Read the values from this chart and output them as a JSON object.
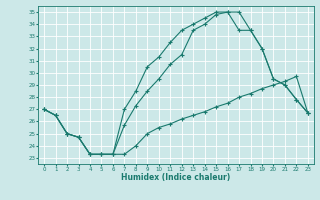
{
  "xlabel": "Humidex (Indice chaleur)",
  "bg_color": "#cce8e8",
  "grid_color": "#ffffff",
  "line_color": "#1a7a6e",
  "xlim": [
    -0.5,
    23.5
  ],
  "ylim": [
    22.5,
    35.5
  ],
  "xticks": [
    0,
    1,
    2,
    3,
    4,
    5,
    6,
    7,
    8,
    9,
    10,
    11,
    12,
    13,
    14,
    15,
    16,
    17,
    18,
    19,
    20,
    21,
    22,
    23
  ],
  "yticks": [
    23,
    24,
    25,
    26,
    27,
    28,
    29,
    30,
    31,
    32,
    33,
    34,
    35
  ],
  "line1_x": [
    0,
    1,
    2,
    3,
    4,
    5,
    6,
    7,
    8,
    9,
    10,
    11,
    12,
    13,
    14,
    15,
    16,
    17,
    18,
    19,
    20,
    21,
    22,
    23
  ],
  "line1_y": [
    27.0,
    26.5,
    25.0,
    24.7,
    23.3,
    23.3,
    23.3,
    23.3,
    24.0,
    25.0,
    25.5,
    25.8,
    26.2,
    26.5,
    26.8,
    27.2,
    27.5,
    28.0,
    28.3,
    28.7,
    29.0,
    29.3,
    29.7,
    26.7
  ],
  "line2_x": [
    0,
    1,
    2,
    3,
    4,
    5,
    6,
    7,
    8,
    9,
    10,
    11,
    12,
    13,
    14,
    15,
    16,
    17,
    18,
    19,
    20,
    21,
    22,
    23
  ],
  "line2_y": [
    27.0,
    26.5,
    25.0,
    24.7,
    23.3,
    23.3,
    23.3,
    27.0,
    28.5,
    30.5,
    31.3,
    32.5,
    33.5,
    34.0,
    34.5,
    35.0,
    35.0,
    35.0,
    33.5,
    32.0,
    29.5,
    29.0,
    27.8,
    26.7
  ],
  "line3_x": [
    0,
    1,
    2,
    3,
    4,
    5,
    6,
    7,
    8,
    9,
    10,
    11,
    12,
    13,
    14,
    15,
    16,
    17,
    18,
    19,
    20,
    21,
    22,
    23
  ],
  "line3_y": [
    27.0,
    26.5,
    25.0,
    24.7,
    23.3,
    23.3,
    23.3,
    25.7,
    27.3,
    28.5,
    29.5,
    30.7,
    31.5,
    33.5,
    34.0,
    34.8,
    35.0,
    33.5,
    33.5,
    32.0,
    29.5,
    29.0,
    27.8,
    26.7
  ]
}
